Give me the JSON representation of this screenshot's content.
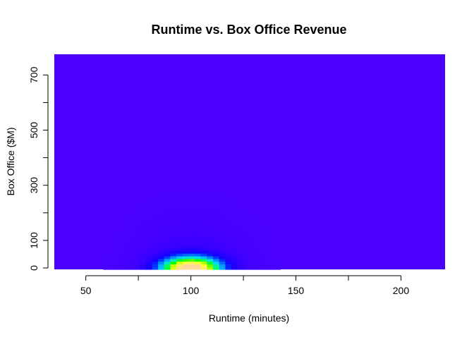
{
  "chart_data": {
    "type": "heatmap",
    "title": "Runtime vs. Box Office Revenue",
    "xlabel": "Runtime (minutes)",
    "ylabel": "Box Office ($M)",
    "xlim": [
      35,
      221
    ],
    "ylim": [
      -5,
      775
    ],
    "x_ticks": [
      50,
      75,
      100,
      125,
      150,
      175,
      200
    ],
    "x_tick_labels": [
      "50",
      "",
      "100",
      "",
      "150",
      "",
      "200"
    ],
    "y_ticks": [
      0,
      100,
      200,
      300,
      400,
      500,
      600,
      700
    ],
    "y_tick_labels": [
      "0",
      "100",
      "",
      "300",
      "",
      "500",
      "",
      "700"
    ],
    "grid": false,
    "legend": "none",
    "density": {
      "peak_runtime": 100,
      "peak_box_office": 0,
      "runtime_sd": 11,
      "box_office_sd": 32,
      "tail_runtime_sd": 17,
      "tail_box_office_sd": 120,
      "x_cells": 64,
      "y_cells": 80
    },
    "color_scale": [
      "#4b00ff",
      "#3d00ff",
      "#2a00ff",
      "#1200ff",
      "#0040ff",
      "#0098ff",
      "#00d8ff",
      "#00ff70",
      "#00ff00",
      "#c8ff00",
      "#ffff33",
      "#ffd8a0"
    ],
    "background_color": "#4b00ff"
  }
}
